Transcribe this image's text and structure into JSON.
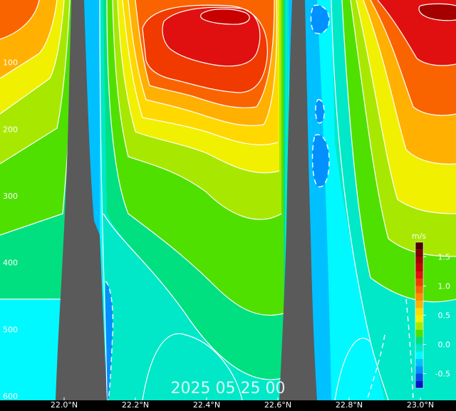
{
  "chart_data": {
    "type": "heatmap",
    "title": "",
    "timestamp": "2025 05 25 00",
    "xlabel": "",
    "ylabel": "",
    "x_ticks": [
      "22.0°N",
      "22.2°N",
      "22.4°N",
      "22.6°N",
      "22.8°N",
      "23.0°N"
    ],
    "x_tick_values": [
      22.0,
      22.2,
      22.4,
      22.6,
      22.8,
      23.0
    ],
    "xlim": [
      21.82,
      23.1
    ],
    "y_ticks": [
      "100",
      "200",
      "300",
      "400",
      "500",
      "600"
    ],
    "y_tick_values": [
      100,
      200,
      300,
      400,
      500,
      600
    ],
    "ylim": [
      0,
      600
    ],
    "y_inverted": true,
    "colorbar": {
      "units": "m/s",
      "tick_labels": [
        "1.5",
        "1.0",
        "0.5",
        "0.0",
        "-0.5"
      ],
      "tick_values": [
        1.5,
        1.0,
        0.5,
        0.0,
        -0.5
      ],
      "vmin": -0.75,
      "vmax": 1.75,
      "levels": [
        {
          "value": 1.75,
          "color": "#4a0000"
        },
        {
          "value": 1.625,
          "color": "#7a0000"
        },
        {
          "value": 1.5,
          "color": "#a50000"
        },
        {
          "value": 1.375,
          "color": "#c80000"
        },
        {
          "value": 1.25,
          "color": "#e01010"
        },
        {
          "value": 1.125,
          "color": "#f03a00"
        },
        {
          "value": 1.0,
          "color": "#fa6400"
        },
        {
          "value": 0.875,
          "color": "#ff8c00"
        },
        {
          "value": 0.75,
          "color": "#ffb000"
        },
        {
          "value": 0.625,
          "color": "#ffd800"
        },
        {
          "value": 0.5,
          "color": "#f0f000"
        },
        {
          "value": 0.375,
          "color": "#a8e800"
        },
        {
          "value": 0.25,
          "color": "#50e000"
        },
        {
          "value": 0.125,
          "color": "#00e080"
        },
        {
          "value": 0.0,
          "color": "#00e8c8"
        },
        {
          "value": -0.125,
          "color": "#00f8ff"
        },
        {
          "value": -0.25,
          "color": "#00c0ff"
        },
        {
          "value": -0.375,
          "color": "#0090ff"
        },
        {
          "value": -0.5,
          "color": "#0050e8"
        },
        {
          "value": -0.625,
          "color": "#0018c8"
        },
        {
          "value": -0.75,
          "color": "#0000a0"
        }
      ]
    },
    "grid": false,
    "topography_color": "#5a5a5a",
    "contour_color": "#ffffff",
    "negative_contours": "dashed"
  }
}
